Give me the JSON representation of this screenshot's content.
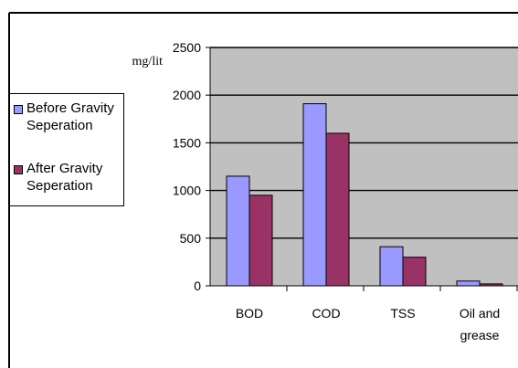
{
  "chart_data": {
    "type": "bar",
    "title": "",
    "xlabel": "",
    "ylabel": "mg/lit",
    "ylim": [
      0,
      2500
    ],
    "yticks": [
      "0",
      "500",
      "1000",
      "1500",
      "2000",
      "2500"
    ],
    "categories": [
      "BOD",
      "COD",
      "TSS",
      "Oil and grease"
    ],
    "category_lines": [
      [
        "BOD"
      ],
      [
        "COD"
      ],
      [
        "TSS"
      ],
      [
        "Oil and",
        "grease"
      ]
    ],
    "series": [
      {
        "name": "Before Gravity Seperation",
        "legend_lines": [
          "Before Gravity",
          "Seperation"
        ],
        "color": "#9999ff",
        "values": [
          1150,
          1910,
          410,
          50
        ]
      },
      {
        "name": "After Gravity Seperation",
        "legend_lines": [
          "After Gravity",
          "Seperation"
        ],
        "color": "#993366",
        "values": [
          950,
          1600,
          300,
          20
        ]
      }
    ],
    "grid": true,
    "plot_background": "#c0c0c0",
    "legend_position": "left"
  }
}
